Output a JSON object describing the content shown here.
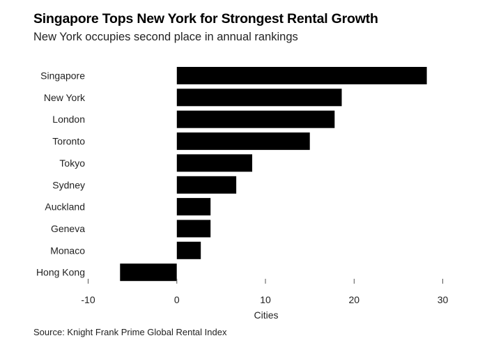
{
  "header": {
    "title": "Singapore Tops New York for Strongest Rental Growth",
    "subtitle": "New York occupies second place in annual rankings"
  },
  "footer": {
    "source": "Source: Knight Frank Prime Global Rental Index"
  },
  "chart_data": {
    "type": "bar",
    "orientation": "horizontal",
    "categories": [
      "Singapore",
      "New York",
      "London",
      "Toronto",
      "Tokyo",
      "Sydney",
      "Auckland",
      "Geneva",
      "Monaco",
      "Hong Kong"
    ],
    "values": [
      28.2,
      18.6,
      17.8,
      15.0,
      8.5,
      6.7,
      3.8,
      3.8,
      2.7,
      -6.4
    ],
    "xlabel": "Cities",
    "xlim": [
      -10,
      30
    ],
    "xticks": [
      -10,
      0,
      10,
      20,
      30
    ],
    "bar_color": "#000000",
    "grid": false,
    "legend": "none"
  }
}
